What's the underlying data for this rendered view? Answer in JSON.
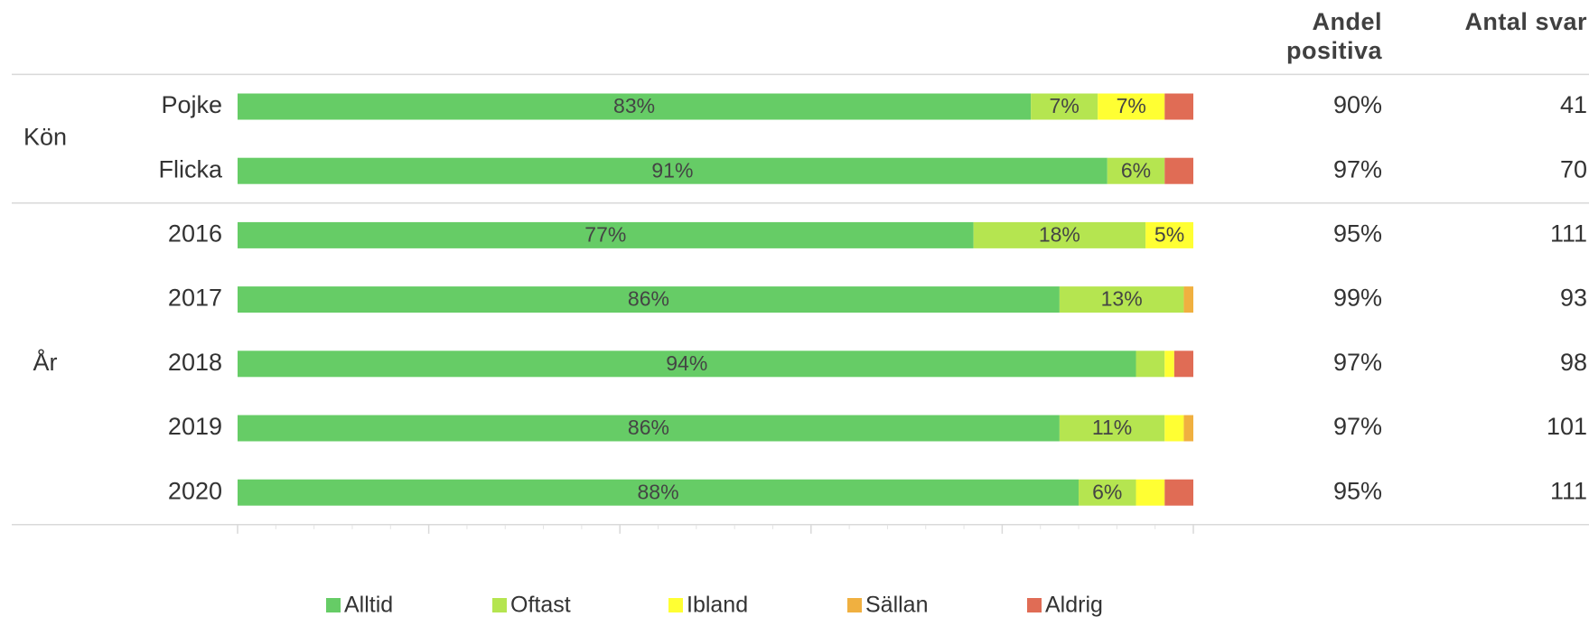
{
  "chart_data": {
    "type": "bar",
    "orientation": "horizontal",
    "stacked": true,
    "groups": [
      {
        "label": "Kön",
        "categories": [
          "Pojke",
          "Flicka"
        ]
      },
      {
        "label": "År",
        "categories": [
          "2016",
          "2017",
          "2018",
          "2019",
          "2020"
        ]
      }
    ],
    "series": [
      {
        "name": "Alltid",
        "color": "#66cc66",
        "values": [
          83,
          91,
          77,
          86,
          94,
          86,
          88
        ],
        "value_labels": [
          "83%",
          "91%",
          "77%",
          "86%",
          "94%",
          "86%",
          "88%"
        ]
      },
      {
        "name": "Oftast",
        "color": "#b5e550",
        "values": [
          7,
          6,
          18,
          13,
          3,
          11,
          6
        ],
        "value_labels": [
          "7%",
          "6%",
          "18%",
          "13%",
          null,
          "11%",
          "6%"
        ]
      },
      {
        "name": "Ibland",
        "color": "#ffff33",
        "values": [
          7,
          0,
          5,
          0,
          1,
          2,
          3
        ],
        "value_labels": [
          "7%",
          null,
          "5%",
          null,
          null,
          null,
          null
        ]
      },
      {
        "name": "Sällan",
        "color": "#f0b040",
        "values": [
          0,
          0,
          0,
          1,
          0,
          1,
          0
        ],
        "value_labels": [
          null,
          null,
          null,
          null,
          null,
          null,
          null
        ]
      },
      {
        "name": "Aldrig",
        "color": "#e06c55",
        "values": [
          3,
          3,
          0,
          0,
          2,
          0,
          3
        ],
        "value_labels": [
          null,
          null,
          null,
          null,
          null,
          null,
          null
        ]
      }
    ],
    "xlim": [
      0,
      100
    ],
    "xticks": [
      0,
      20,
      40,
      60,
      80,
      100
    ],
    "columns": [
      {
        "header": "Andel positiva",
        "values": [
          90,
          97,
          95,
          99,
          97,
          97,
          95
        ],
        "value_labels": [
          "90%",
          "97%",
          "95%",
          "99%",
          "97%",
          "97%",
          "95%"
        ]
      },
      {
        "header": "Antal svar",
        "values": [
          41,
          70,
          111,
          93,
          98,
          101,
          111
        ]
      }
    ],
    "legend": "bottom"
  }
}
